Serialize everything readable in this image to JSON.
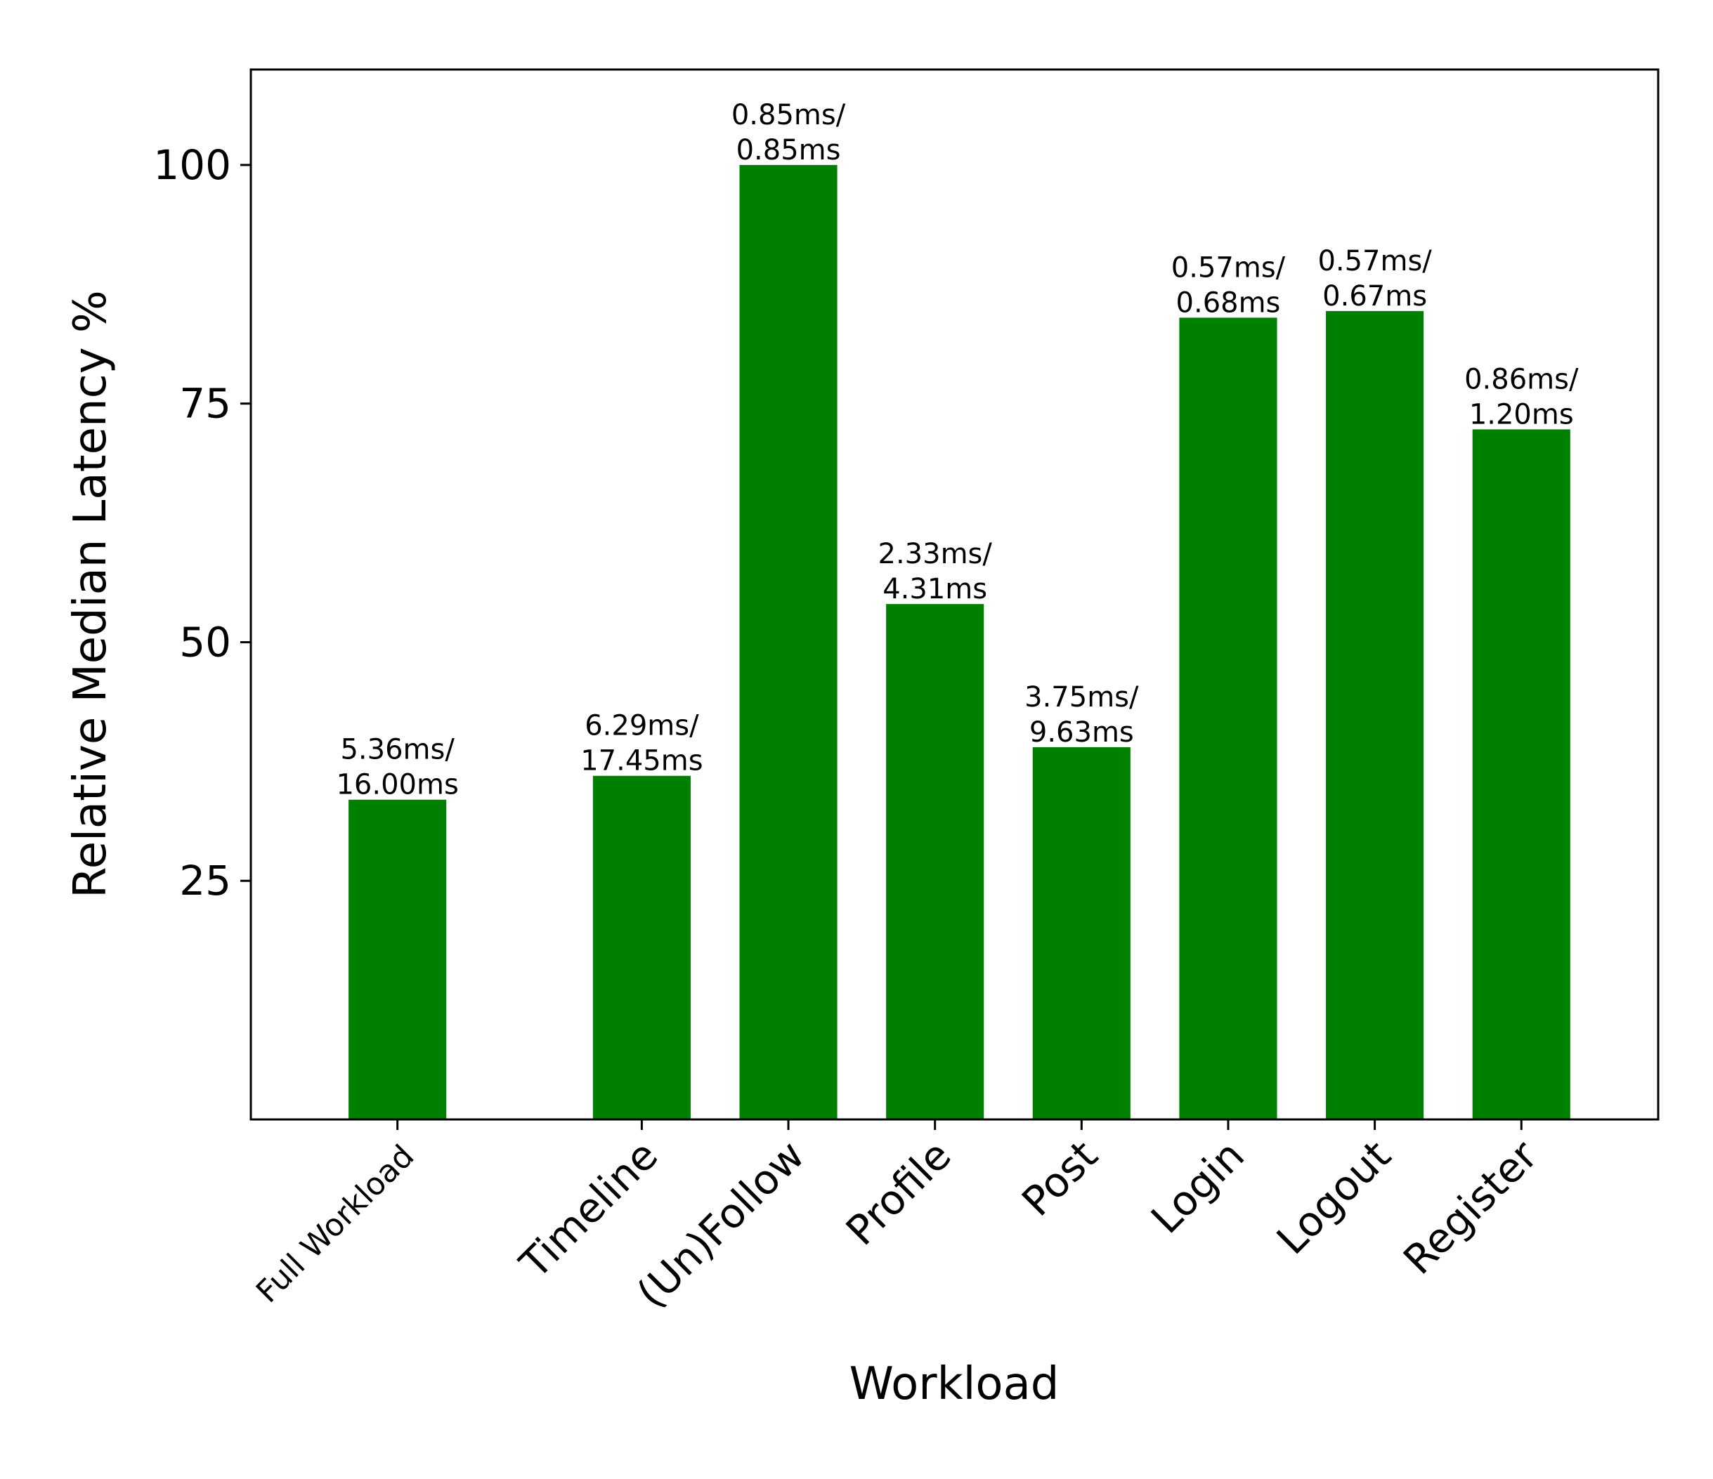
{
  "chart_data": {
    "type": "bar",
    "title": "",
    "xlabel": "Workload",
    "ylabel": "Relative Median Latency %",
    "categories": [
      "Full Workload",
      "Timeline",
      "(Un)Follow",
      "Profile",
      "Post",
      "Login",
      "Logout",
      "Register"
    ],
    "values": [
      33.5,
      36.0,
      100.0,
      54.0,
      39.0,
      84.0,
      84.7,
      72.3
    ],
    "data_labels": [
      [
        "5.36ms/",
        "16.00ms"
      ],
      [
        "6.29ms/",
        "17.45ms"
      ],
      [
        "0.85ms/",
        "0.85ms"
      ],
      [
        "2.33ms/",
        "4.31ms"
      ],
      [
        "3.75ms/",
        "9.63ms"
      ],
      [
        "0.57ms/",
        "0.68ms"
      ],
      [
        "0.57ms/",
        "0.67ms"
      ],
      [
        "0.86ms/",
        "1.20ms"
      ]
    ],
    "x_positions": [
      0,
      2.5,
      4,
      5.5,
      7,
      8.5,
      10,
      11.5
    ],
    "yticks": [
      25,
      50,
      75,
      100
    ],
    "ylim": [
      0,
      110
    ],
    "grid": false,
    "legend": "none",
    "bar_color": "#008000"
  }
}
